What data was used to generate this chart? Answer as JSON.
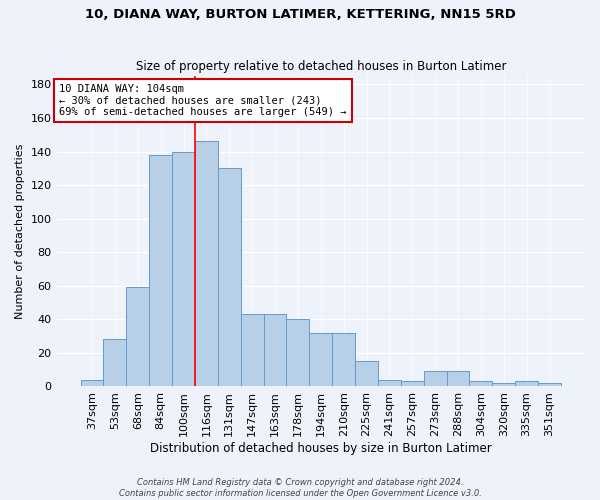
{
  "title": "10, DIANA WAY, BURTON LATIMER, KETTERING, NN15 5RD",
  "subtitle": "Size of property relative to detached houses in Burton Latimer",
  "xlabel": "Distribution of detached houses by size in Burton Latimer",
  "ylabel": "Number of detached properties",
  "categories": [
    "37sqm",
    "53sqm",
    "68sqm",
    "84sqm",
    "100sqm",
    "116sqm",
    "131sqm",
    "147sqm",
    "163sqm",
    "178sqm",
    "194sqm",
    "210sqm",
    "225sqm",
    "241sqm",
    "257sqm",
    "273sqm",
    "288sqm",
    "304sqm",
    "320sqm",
    "335sqm",
    "351sqm"
  ],
  "values": [
    4,
    28,
    59,
    138,
    140,
    146,
    130,
    43,
    43,
    40,
    32,
    32,
    15,
    4,
    3,
    9,
    9,
    3,
    2,
    3,
    2
  ],
  "bar_color": "#b8cfe8",
  "bar_edge_color": "#6699cc",
  "background_color": "#eef2fb",
  "grid_color": "#ffffff",
  "vline_x_index": 4,
  "vline_color": "#ff0000",
  "annotation_text": "10 DIANA WAY: 104sqm\n← 30% of detached houses are smaller (243)\n69% of semi-detached houses are larger (549) →",
  "annotation_box_color": "#ffffff",
  "annotation_box_edge": "#cc0000",
  "ylim": [
    0,
    185
  ],
  "yticks": [
    0,
    20,
    40,
    60,
    80,
    100,
    120,
    140,
    160,
    180
  ],
  "footer_text": "Contains HM Land Registry data © Crown copyright and database right 2024.\nContains public sector information licensed under the Open Government Licence v3.0."
}
